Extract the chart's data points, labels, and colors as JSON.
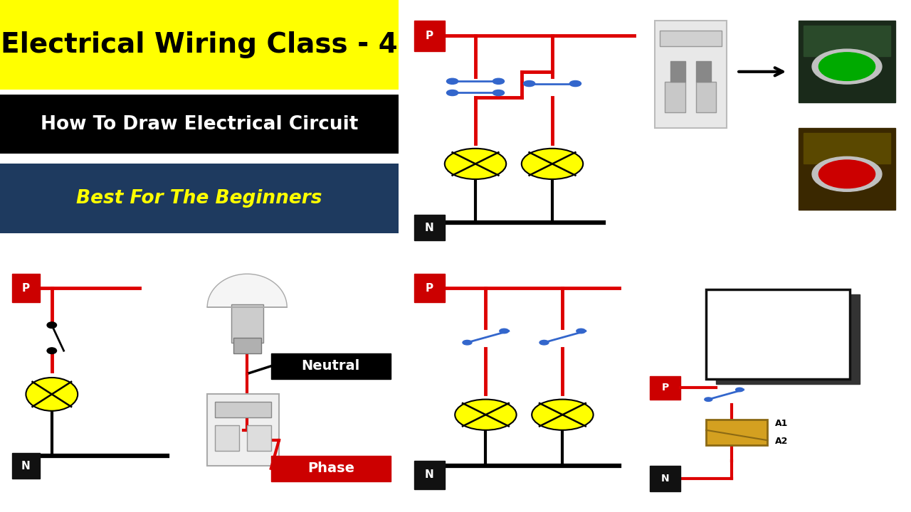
{
  "title_text": "Electrical Wiring Class - 4",
  "title_bg": "#FFFF00",
  "title_fg": "#000000",
  "subtitle1_text": "How To Draw Electrical Circuit",
  "subtitle1_bg": "#000000",
  "subtitle1_fg": "#FFFFFF",
  "subtitle2_text": "Best For The Beginners",
  "subtitle2_bg": "#1E3A5F",
  "subtitle2_fg": "#FFFF00",
  "neutral_label": "Neutral",
  "phase_label": "Phase",
  "bg_color": "#FFFFFF",
  "wire_red": "#DD0000",
  "wire_black": "#000000",
  "wire_blue": "#3366CC",
  "lamp_fill": "#FFFF00",
  "label_P_bg": "#CC0000",
  "label_N_bg": "#111111",
  "label_fg": "#FFFFFF",
  "border_color": "#222222",
  "panel_bg": "#FFFFFF"
}
